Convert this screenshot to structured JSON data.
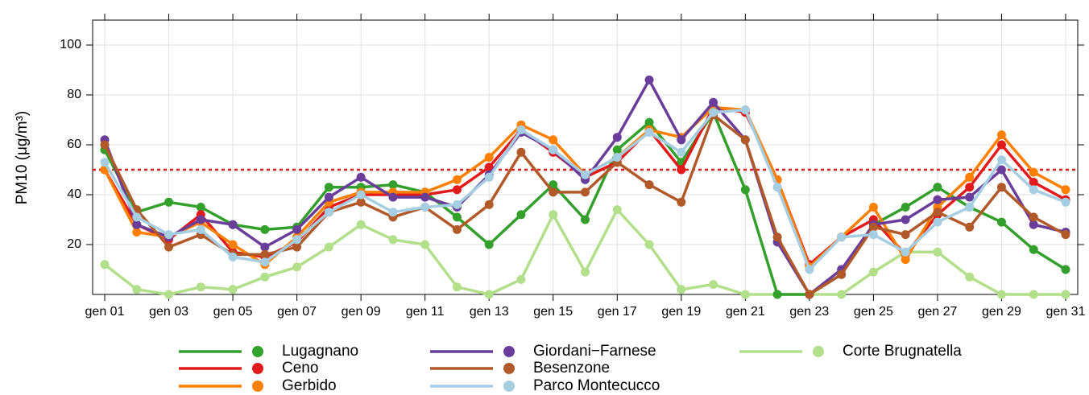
{
  "chart_data": {
    "type": "line",
    "y_label": "PM10 (μg/m³)",
    "categories": [
      "gen 01",
      null,
      "gen 03",
      null,
      "gen 05",
      null,
      "gen 07",
      null,
      "gen 09",
      null,
      "gen 11",
      null,
      "gen 13",
      null,
      "gen 15",
      null,
      "gen 17",
      null,
      "gen 19",
      null,
      "gen 21",
      null,
      "gen 23",
      null,
      "gen 25",
      null,
      "gen 27",
      null,
      "gen 29",
      null,
      "gen 31"
    ],
    "ylim": [
      0,
      110
    ],
    "yticks": [
      20,
      40,
      60,
      80,
      100
    ],
    "grid": true,
    "threshold": 50,
    "threshold_color": "#e31a1c",
    "series": [
      {
        "name": "Lugagnano",
        "color": "#33a02c",
        "values": [
          58,
          33,
          37,
          35,
          28,
          26,
          27,
          43,
          43,
          44,
          41,
          31,
          20,
          32,
          44,
          30,
          58,
          69,
          53,
          73,
          42,
          0,
          0,
          8,
          28,
          35,
          43,
          35,
          29,
          18,
          10
        ]
      },
      {
        "name": "Ceno",
        "color": "#e31a1c",
        "values": [
          50,
          28,
          22,
          32,
          17,
          15,
          21,
          35,
          40,
          40,
          40,
          42,
          51,
          66,
          57,
          47,
          53,
          66,
          50,
          75,
          73,
          46,
          12,
          23,
          30,
          16,
          32,
          43,
          60,
          45,
          38
        ]
      },
      {
        "name": "Gerbido",
        "color": "#ff7f00",
        "values": [
          50,
          25,
          23,
          29,
          20,
          12,
          23,
          37,
          41,
          41,
          41,
          46,
          55,
          68,
          62,
          48,
          55,
          66,
          63,
          75,
          74,
          46,
          11,
          23,
          35,
          14,
          35,
          47,
          64,
          49,
          42
        ]
      },
      {
        "name": "Giordani−Farnese",
        "color": "#6a3d9a",
        "values": [
          62,
          28,
          23,
          30,
          28,
          19,
          26,
          39,
          47,
          39,
          39,
          35,
          48,
          65,
          58,
          46,
          63,
          86,
          62,
          77,
          62,
          21,
          0,
          10,
          28,
          30,
          38,
          39,
          50,
          28,
          25
        ]
      },
      {
        "name": "Besenzone",
        "color": "#b15928",
        "values": [
          60,
          34,
          19,
          24,
          16,
          16,
          19,
          33,
          37,
          31,
          35,
          26,
          36,
          57,
          41,
          41,
          53,
          44,
          37,
          72,
          62,
          23,
          0,
          8,
          27,
          24,
          33,
          27,
          43,
          31,
          24
        ]
      },
      {
        "name": "Parco Montecucco",
        "color": "#a6cee3",
        "values": [
          53,
          31,
          24,
          26,
          15,
          13,
          22,
          33,
          40,
          33,
          35,
          36,
          47,
          66,
          58,
          48,
          55,
          65,
          57,
          73,
          74,
          43,
          10,
          23,
          24,
          17,
          29,
          35,
          54,
          42,
          37
        ]
      },
      {
        "name": "Corte Brugnatella",
        "color": "#b2df8a",
        "values": [
          12,
          2,
          0,
          3,
          2,
          7,
          11,
          19,
          28,
          22,
          20,
          3,
          0,
          6,
          32,
          9,
          34,
          20,
          2,
          4,
          0,
          0,
          0,
          0,
          9,
          17,
          17,
          7,
          0,
          0,
          0
        ]
      }
    ]
  }
}
